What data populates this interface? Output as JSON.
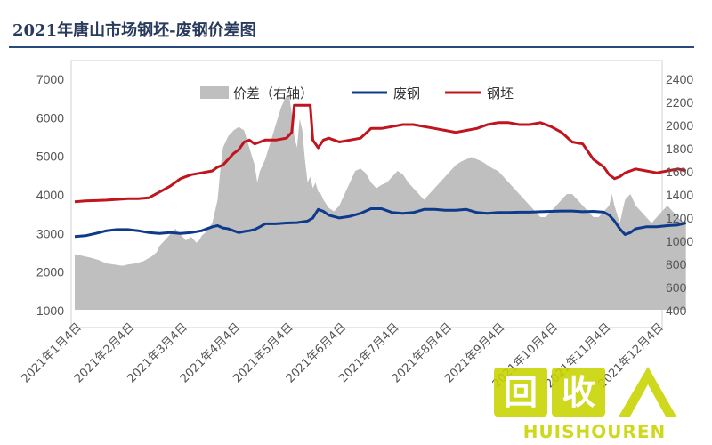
{
  "chart_data": {
    "type": "line",
    "title": "2021年唐山市场钢坯-废钢价差图",
    "left_axis": {
      "min": 1000,
      "max": 7000,
      "ticks": [
        1000,
        2000,
        3000,
        4000,
        5000,
        6000,
        7000
      ]
    },
    "right_axis": {
      "min": 400,
      "max": 2400,
      "ticks": [
        400,
        600,
        800,
        1000,
        1200,
        1400,
        1600,
        1800,
        2000,
        2200,
        2400
      ]
    },
    "x_labels": [
      "2021年1月4日",
      "2021年2月4日",
      "2021年3月4日",
      "2021年4月4日",
      "2021年5月4日",
      "2021年6月4日",
      "2021年7月4日",
      "2021年8月4日",
      "2021年9月4日",
      "2021年10月4日",
      "2021年11月4日",
      "2021年12月4日"
    ],
    "legend_position": "top",
    "series": [
      {
        "name": "价差（右轴）",
        "kind": "area",
        "axis": "right",
        "color": "#bfbfbf",
        "x": [
          0,
          0.1,
          0.2,
          0.3,
          0.45,
          0.6,
          0.75,
          0.9,
          1.0,
          1.15,
          1.3,
          1.45,
          1.55,
          1.6,
          1.7,
          1.8,
          1.85,
          1.9,
          2.0,
          2.1,
          2.2,
          2.3,
          2.35,
          2.4,
          2.5,
          2.6,
          2.7,
          2.75,
          2.8,
          2.85,
          2.9,
          3.0,
          3.1,
          3.2,
          3.3,
          3.4,
          3.45,
          3.5,
          3.6,
          3.7,
          3.8,
          3.9,
          4.0,
          4.05,
          4.1,
          4.15,
          4.2,
          4.25,
          4.3,
          4.35,
          4.4,
          4.45,
          4.5,
          4.55,
          4.6,
          4.65,
          4.7,
          4.8,
          4.9,
          5.0,
          5.1,
          5.2,
          5.3,
          5.4,
          5.5,
          5.6,
          5.7,
          5.8,
          5.9,
          6.0,
          6.1,
          6.2,
          6.3,
          6.4,
          6.5,
          6.6,
          6.7,
          6.8,
          6.9,
          7.0,
          7.1,
          7.2,
          7.3,
          7.4,
          7.5,
          7.6,
          7.7,
          7.8,
          7.9,
          8.0,
          8.1,
          8.2,
          8.3,
          8.4,
          8.5,
          8.6,
          8.7,
          8.8,
          8.9,
          9.0,
          9.1,
          9.2,
          9.3,
          9.4,
          9.5,
          9.6,
          9.7,
          9.8,
          9.9,
          10.0,
          10.1,
          10.15,
          10.2,
          10.3,
          10.4,
          10.5,
          10.6,
          10.7,
          10.8,
          10.9,
          11.0,
          11.1,
          11.2,
          11.3,
          11.4,
          11.5,
          11.55
        ],
        "y": [
          880,
          870,
          860,
          850,
          830,
          800,
          790,
          780,
          790,
          800,
          820,
          860,
          900,
          950,
          1000,
          1050,
          1080,
          1100,
          1050,
          1000,
          1030,
          980,
          1000,
          1040,
          1080,
          1150,
          1350,
          1600,
          1800,
          1850,
          1900,
          1950,
          1980,
          1950,
          1800,
          1650,
          1500,
          1600,
          1700,
          1850,
          2000,
          2150,
          2250,
          2250,
          2100,
          1900,
          1800,
          2050,
          1950,
          1700,
          1500,
          1550,
          1450,
          1500,
          1420,
          1400,
          1350,
          1280,
          1250,
          1300,
          1400,
          1500,
          1600,
          1620,
          1580,
          1500,
          1450,
          1480,
          1500,
          1550,
          1600,
          1570,
          1500,
          1450,
          1400,
          1350,
          1400,
          1450,
          1500,
          1550,
          1600,
          1650,
          1680,
          1700,
          1720,
          1700,
          1680,
          1650,
          1620,
          1600,
          1550,
          1500,
          1450,
          1400,
          1350,
          1300,
          1250,
          1200,
          1200,
          1250,
          1300,
          1350,
          1400,
          1400,
          1350,
          1300,
          1250,
          1200,
          1200,
          1250,
          1300,
          1400,
          1300,
          1150,
          1350,
          1400,
          1300,
          1250,
          1200,
          1150,
          1200,
          1250,
          1300,
          1250,
          1200,
          1150,
          1200
        ]
      },
      {
        "name": "废钢",
        "kind": "line",
        "axis": "left",
        "color": "#0d3a8a",
        "x": [
          0,
          0.2,
          0.4,
          0.6,
          0.8,
          1.0,
          1.2,
          1.4,
          1.6,
          1.8,
          2.0,
          2.2,
          2.4,
          2.6,
          2.7,
          2.8,
          2.9,
          3.0,
          3.1,
          3.2,
          3.3,
          3.4,
          3.5,
          3.6,
          3.8,
          4.0,
          4.2,
          4.4,
          4.5,
          4.6,
          4.7,
          4.8,
          5.0,
          5.2,
          5.4,
          5.6,
          5.8,
          6.0,
          6.2,
          6.4,
          6.6,
          6.8,
          7.0,
          7.2,
          7.4,
          7.6,
          7.8,
          8.0,
          8.2,
          8.4,
          8.6,
          8.8,
          9.0,
          9.2,
          9.4,
          9.6,
          9.8,
          10.0,
          10.1,
          10.2,
          10.3,
          10.4,
          10.5,
          10.6,
          10.8,
          11.0,
          11.2,
          11.4,
          11.55
        ],
        "y": [
          2900,
          2920,
          2980,
          3050,
          3080,
          3080,
          3050,
          3000,
          2980,
          3000,
          2980,
          3000,
          3050,
          3150,
          3180,
          3120,
          3100,
          3050,
          3000,
          3030,
          3050,
          3080,
          3150,
          3230,
          3230,
          3250,
          3260,
          3300,
          3380,
          3600,
          3550,
          3450,
          3380,
          3420,
          3500,
          3620,
          3620,
          3520,
          3500,
          3520,
          3600,
          3600,
          3580,
          3580,
          3600,
          3520,
          3500,
          3520,
          3520,
          3530,
          3530,
          3540,
          3550,
          3560,
          3560,
          3540,
          3550,
          3530,
          3450,
          3300,
          3100,
          2950,
          3000,
          3100,
          3150,
          3150,
          3180,
          3200,
          3250
        ]
      },
      {
        "name": "钢坯",
        "kind": "line",
        "axis": "left",
        "color": "#c0141e",
        "x": [
          0,
          0.2,
          0.4,
          0.6,
          0.8,
          1.0,
          1.2,
          1.4,
          1.6,
          1.8,
          2.0,
          2.2,
          2.4,
          2.6,
          2.7,
          2.8,
          2.9,
          3.0,
          3.1,
          3.2,
          3.3,
          3.4,
          3.5,
          3.6,
          3.8,
          4.0,
          4.1,
          4.15,
          4.3,
          4.45,
          4.5,
          4.6,
          4.7,
          4.8,
          4.9,
          5.0,
          5.2,
          5.4,
          5.6,
          5.8,
          6.0,
          6.2,
          6.4,
          6.6,
          6.8,
          7.0,
          7.2,
          7.4,
          7.6,
          7.8,
          8.0,
          8.2,
          8.4,
          8.6,
          8.8,
          9.0,
          9.2,
          9.4,
          9.6,
          9.8,
          10.0,
          10.1,
          10.2,
          10.3,
          10.4,
          10.5,
          10.6,
          10.8,
          11.0,
          11.2,
          11.4,
          11.55
        ],
        "y": [
          3800,
          3820,
          3830,
          3840,
          3860,
          3880,
          3880,
          3900,
          4050,
          4200,
          4400,
          4500,
          4550,
          4600,
          4700,
          4750,
          4900,
          5050,
          5150,
          5350,
          5400,
          5300,
          5350,
          5400,
          5400,
          5450,
          5600,
          6300,
          6300,
          6300,
          5400,
          5200,
          5400,
          5450,
          5400,
          5350,
          5400,
          5450,
          5700,
          5700,
          5750,
          5800,
          5800,
          5750,
          5700,
          5650,
          5600,
          5650,
          5700,
          5800,
          5850,
          5850,
          5800,
          5800,
          5850,
          5750,
          5600,
          5350,
          5300,
          4900,
          4700,
          4500,
          4400,
          4450,
          4550,
          4600,
          4650,
          4600,
          4550,
          4600,
          4650,
          4600
        ]
      }
    ]
  },
  "watermark": {
    "brand": "回收",
    "domain": "HUISHOUREN"
  }
}
